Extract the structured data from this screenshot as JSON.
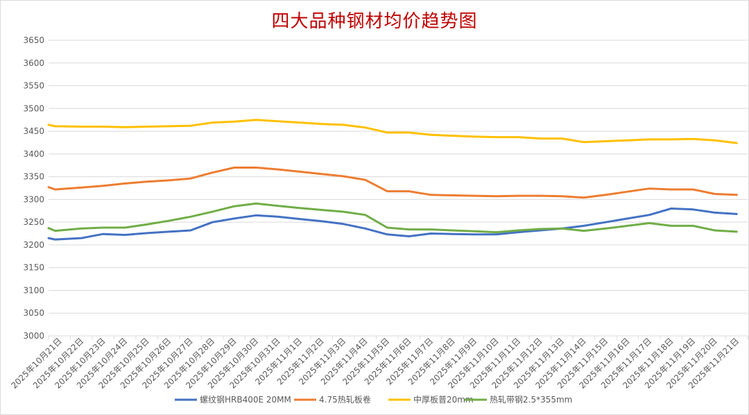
{
  "chart_data": {
    "type": "line",
    "title": "四大品种钢材均价趋势图",
    "xlabel": "",
    "ylabel": "",
    "ylim": [
      3000,
      3650
    ],
    "yticks": [
      3000,
      3050,
      3100,
      3150,
      3200,
      3250,
      3300,
      3350,
      3400,
      3450,
      3500,
      3550,
      3600,
      3650
    ],
    "grid": true,
    "legend": "bottom",
    "categories": [
      "2025年10月21日",
      "2025年10月22日",
      "2025年10月23日",
      "2025年10月24日",
      "2025年10月25日",
      "2025年10月26日",
      "2025年10月27日",
      "2025年10月28日",
      "2025年10月29日",
      "2025年10月30日",
      "2025年10月31日",
      "2025年11月1日",
      "2025年11月2日",
      "2025年11月3日",
      "2025年11月4日",
      "2025年11月5日",
      "2025年11月6日",
      "2025年11月7日",
      "2025年11月8日",
      "2025年11月9日",
      "2025年11月10日",
      "2025年11月11日",
      "2025年11月12日",
      "2025年11月13日",
      "2025年11月14日",
      "2025年11月15日",
      "2025年11月16日",
      "2025年11月17日",
      "2025年11月18日",
      "2025年11月19日",
      "2025年11月20日",
      "2025年11月21日"
    ],
    "series": [
      {
        "name": "螺纹钢HRB400E 20MM",
        "color": "#4472c4",
        "points": [
          [
            0,
            3215
          ],
          [
            0.3,
            3212
          ],
          [
            1.5,
            3215
          ],
          [
            2.5,
            3224
          ],
          [
            3.5,
            3222
          ],
          [
            4.5,
            3226
          ],
          [
            5.5,
            3229
          ],
          [
            6.5,
            3232
          ],
          [
            7.5,
            3250
          ],
          [
            8.5,
            3258
          ],
          [
            9.5,
            3265
          ],
          [
            10.5,
            3262
          ],
          [
            11.5,
            3257
          ],
          [
            12.5,
            3252
          ],
          [
            13.5,
            3246
          ],
          [
            14.5,
            3236
          ],
          [
            15.5,
            3223
          ],
          [
            16.5,
            3219
          ],
          [
            17.5,
            3225
          ],
          [
            18.5,
            3224
          ],
          [
            19.5,
            3223
          ],
          [
            20.5,
            3223
          ],
          [
            21.5,
            3228
          ],
          [
            22.5,
            3232
          ],
          [
            23.5,
            3236
          ],
          [
            24.5,
            3242
          ],
          [
            25.5,
            3250
          ],
          [
            26.5,
            3258
          ],
          [
            27.5,
            3266
          ],
          [
            28.5,
            3280
          ],
          [
            29.5,
            3278
          ],
          [
            30.5,
            3271
          ],
          [
            31.5,
            3268
          ]
        ]
      },
      {
        "name": "4.75热轧板卷",
        "color": "#ed7d31",
        "points": [
          [
            0,
            3327
          ],
          [
            0.3,
            3322
          ],
          [
            1.5,
            3326
          ],
          [
            2.5,
            3330
          ],
          [
            3.5,
            3335
          ],
          [
            4.5,
            3339
          ],
          [
            5.5,
            3342
          ],
          [
            6.5,
            3346
          ],
          [
            7.5,
            3359
          ],
          [
            8.5,
            3370
          ],
          [
            9.5,
            3370
          ],
          [
            10.5,
            3366
          ],
          [
            11.5,
            3361
          ],
          [
            12.5,
            3356
          ],
          [
            13.5,
            3351
          ],
          [
            14.5,
            3343
          ],
          [
            15.5,
            3318
          ],
          [
            16.5,
            3318
          ],
          [
            17.5,
            3310
          ],
          [
            18.5,
            3309
          ],
          [
            19.5,
            3308
          ],
          [
            20.5,
            3307
          ],
          [
            21.5,
            3308
          ],
          [
            22.5,
            3308
          ],
          [
            23.5,
            3307
          ],
          [
            24.5,
            3304
          ],
          [
            25.5,
            3310
          ],
          [
            26.5,
            3317
          ],
          [
            27.5,
            3324
          ],
          [
            28.5,
            3322
          ],
          [
            29.5,
            3322
          ],
          [
            30.5,
            3312
          ],
          [
            31.5,
            3310
          ]
        ]
      },
      {
        "name": "中厚板普20mm",
        "color": "#ffc000",
        "points": [
          [
            0,
            3464
          ],
          [
            0.3,
            3461
          ],
          [
            1.5,
            3460
          ],
          [
            2.5,
            3460
          ],
          [
            3.5,
            3459
          ],
          [
            4.5,
            3460
          ],
          [
            5.5,
            3461
          ],
          [
            6.5,
            3462
          ],
          [
            7.5,
            3469
          ],
          [
            8.5,
            3471
          ],
          [
            9.5,
            3475
          ],
          [
            10.5,
            3472
          ],
          [
            11.5,
            3469
          ],
          [
            12.5,
            3466
          ],
          [
            13.5,
            3464
          ],
          [
            14.5,
            3458
          ],
          [
            15.5,
            3447
          ],
          [
            16.5,
            3447
          ],
          [
            17.5,
            3442
          ],
          [
            18.5,
            3440
          ],
          [
            19.5,
            3438
          ],
          [
            20.5,
            3437
          ],
          [
            21.5,
            3437
          ],
          [
            22.5,
            3434
          ],
          [
            23.5,
            3434
          ],
          [
            24.5,
            3426
          ],
          [
            25.5,
            3428
          ],
          [
            26.5,
            3430
          ],
          [
            27.5,
            3432
          ],
          [
            28.5,
            3432
          ],
          [
            29.5,
            3433
          ],
          [
            30.5,
            3430
          ],
          [
            31.5,
            3424
          ]
        ]
      },
      {
        "name": "热轧带钢2.5*355mm",
        "color": "#70ad47",
        "points": [
          [
            0,
            3237
          ],
          [
            0.3,
            3231
          ],
          [
            1.5,
            3236
          ],
          [
            2.5,
            3238
          ],
          [
            3.5,
            3238
          ],
          [
            4.5,
            3245
          ],
          [
            5.5,
            3253
          ],
          [
            6.5,
            3262
          ],
          [
            7.5,
            3273
          ],
          [
            8.5,
            3285
          ],
          [
            9.5,
            3291
          ],
          [
            10.5,
            3286
          ],
          [
            11.5,
            3281
          ],
          [
            12.5,
            3277
          ],
          [
            13.5,
            3273
          ],
          [
            14.5,
            3266
          ],
          [
            15.5,
            3238
          ],
          [
            16.5,
            3234
          ],
          [
            17.5,
            3234
          ],
          [
            18.5,
            3232
          ],
          [
            19.5,
            3230
          ],
          [
            20.5,
            3228
          ],
          [
            21.5,
            3232
          ],
          [
            22.5,
            3235
          ],
          [
            23.5,
            3236
          ],
          [
            24.5,
            3231
          ],
          [
            25.5,
            3236
          ],
          [
            26.5,
            3242
          ],
          [
            27.5,
            3248
          ],
          [
            28.5,
            3242
          ],
          [
            29.5,
            3242
          ],
          [
            30.5,
            3232
          ],
          [
            31.5,
            3229
          ]
        ]
      }
    ]
  }
}
